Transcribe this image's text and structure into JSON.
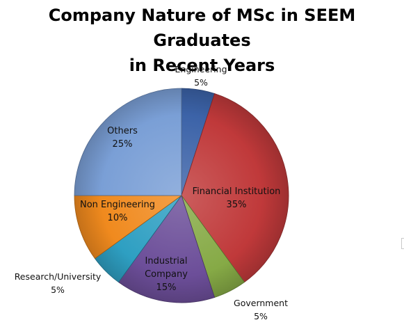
{
  "chart_data": {
    "type": "pie",
    "title_lines": [
      "Company Nature of MSc in SEEM Graduates",
      "in Recent Years"
    ],
    "slices": [
      {
        "label": "Engineering",
        "value": 5,
        "value_label": "5%",
        "color": "#3c63a8"
      },
      {
        "label": "Financial Institution",
        "value": 35,
        "value_label": "35%",
        "color": "#c0393a"
      },
      {
        "label": "Government",
        "value": 5,
        "value_label": "5%",
        "color": "#86aa46"
      },
      {
        "label": "Industrial Company",
        "value": 15,
        "value_label": "15%",
        "color": "#6c4e99"
      },
      {
        "label": "Research/University",
        "value": 5,
        "value_label": "5%",
        "color": "#2e9fc2"
      },
      {
        "label": "Non Engineering",
        "value": 10,
        "value_label": "10%",
        "color": "#f08a1e"
      },
      {
        "label": "Others",
        "value": 25,
        "value_label": "25%",
        "color": "#7a9fd6"
      }
    ],
    "start_angle_deg": 0,
    "direction": "clockwise"
  }
}
